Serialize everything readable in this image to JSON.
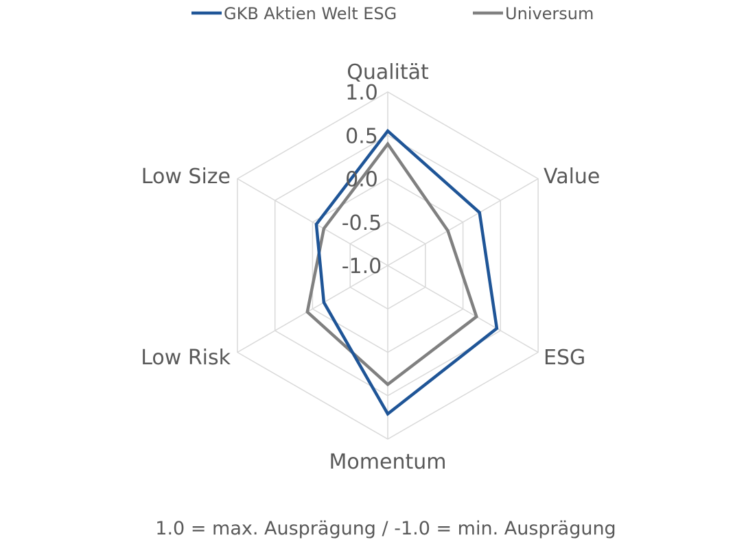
{
  "chart_data": {
    "type": "radar",
    "axes": [
      "Qualität",
      "Value",
      "ESG",
      "Momentum",
      "Low Risk",
      "Low Size"
    ],
    "ticks": [
      "1.0",
      "0.5",
      "0.0",
      "-0.5",
      "-1.0"
    ],
    "rlim": [
      -1.0,
      1.0
    ],
    "grid": true,
    "legend_position": "top",
    "series": [
      {
        "name": "GKB Aktien Welt ESG",
        "color": "#1f5597",
        "values": [
          0.55,
          0.22,
          0.45,
          0.71,
          -0.15,
          -0.05
        ]
      },
      {
        "name": "Universum",
        "color": "#808080",
        "values": [
          0.4,
          -0.2,
          0.18,
          0.37,
          0.07,
          -0.15
        ]
      }
    ],
    "footnote": "1.0 = max. Ausprägung / -1.0 = min. Ausprägung"
  }
}
